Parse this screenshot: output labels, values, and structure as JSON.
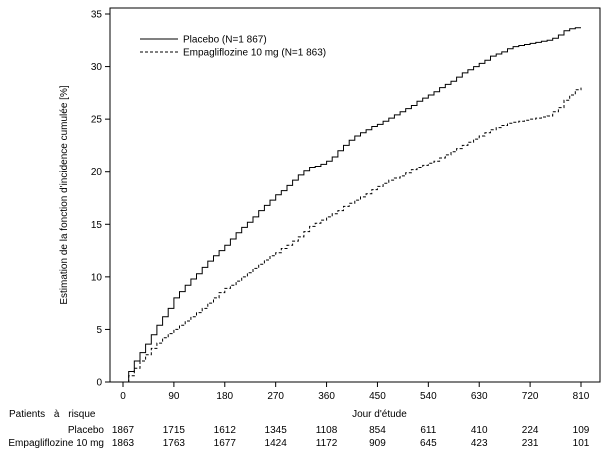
{
  "chart_data": {
    "type": "line",
    "title": "",
    "xlabel": "Jour d'étude",
    "ylabel": "Estimation de la fonction d'incidence cumulée [%]",
    "xlim": [
      0,
      810
    ],
    "ylim": [
      0,
      35
    ],
    "x_ticks": [
      0,
      90,
      180,
      270,
      360,
      450,
      540,
      630,
      720,
      810
    ],
    "y_ticks": [
      0,
      5,
      10,
      15,
      20,
      25,
      30,
      35
    ],
    "grid": false,
    "legend_position": "top-left",
    "series": [
      {
        "name": "Placebo (N=1 867)",
        "line_style": "solid",
        "color": "#000000",
        "x": [
          0,
          10,
          20,
          30,
          40,
          50,
          60,
          70,
          80,
          90,
          100,
          110,
          120,
          130,
          140,
          150,
          160,
          170,
          180,
          190,
          200,
          210,
          220,
          230,
          240,
          250,
          260,
          270,
          280,
          290,
          300,
          310,
          320,
          330,
          340,
          350,
          360,
          370,
          380,
          390,
          400,
          410,
          420,
          430,
          440,
          450,
          460,
          470,
          480,
          490,
          500,
          510,
          520,
          530,
          540,
          550,
          560,
          570,
          580,
          590,
          600,
          610,
          620,
          630,
          640,
          650,
          660,
          670,
          680,
          690,
          700,
          710,
          720,
          730,
          740,
          750,
          760,
          770,
          780,
          790,
          800,
          810
        ],
        "y": [
          0,
          1.0,
          2.0,
          2.8,
          3.6,
          4.5,
          5.4,
          6.2,
          7.0,
          8.0,
          8.6,
          9.2,
          9.8,
          10.3,
          10.9,
          11.5,
          12.0,
          12.5,
          13.0,
          13.6,
          14.2,
          14.7,
          15.2,
          15.7,
          16.3,
          16.8,
          17.3,
          17.8,
          18.2,
          18.7,
          19.2,
          19.7,
          20.1,
          20.4,
          20.5,
          20.7,
          21.0,
          21.4,
          22.0,
          22.5,
          23.0,
          23.4,
          23.7,
          24.0,
          24.3,
          24.5,
          24.8,
          25.1,
          25.4,
          25.7,
          26.0,
          26.3,
          26.7,
          27.0,
          27.3,
          27.6,
          28.0,
          28.3,
          28.6,
          29.0,
          29.4,
          29.7,
          30.0,
          30.3,
          30.6,
          31.0,
          31.2,
          31.4,
          31.7,
          31.9,
          32.0,
          32.1,
          32.2,
          32.3,
          32.4,
          32.5,
          32.7,
          33.0,
          33.4,
          33.6,
          33.7,
          33.7
        ]
      },
      {
        "name": "Empagliflozine 10 mg (N=1 863)",
        "line_style": "dashed",
        "color": "#000000",
        "x": [
          0,
          10,
          20,
          30,
          40,
          50,
          60,
          70,
          80,
          90,
          100,
          110,
          120,
          130,
          140,
          150,
          160,
          170,
          180,
          190,
          200,
          210,
          220,
          230,
          240,
          250,
          260,
          270,
          280,
          290,
          300,
          310,
          320,
          330,
          340,
          350,
          360,
          370,
          380,
          390,
          400,
          410,
          420,
          430,
          440,
          450,
          460,
          470,
          480,
          490,
          500,
          510,
          520,
          530,
          540,
          550,
          560,
          570,
          580,
          590,
          600,
          610,
          620,
          630,
          640,
          650,
          660,
          670,
          680,
          690,
          700,
          710,
          720,
          730,
          740,
          750,
          760,
          770,
          780,
          790,
          800,
          810
        ],
        "y": [
          0,
          0.6,
          1.3,
          2.0,
          2.6,
          3.2,
          3.7,
          4.2,
          4.6,
          5.0,
          5.4,
          5.8,
          6.2,
          6.6,
          7.0,
          7.5,
          8.0,
          8.5,
          8.9,
          9.2,
          9.6,
          10.0,
          10.4,
          10.8,
          11.2,
          11.6,
          12.0,
          12.3,
          12.7,
          13.0,
          13.4,
          13.8,
          14.3,
          14.8,
          15.1,
          15.4,
          15.7,
          16.0,
          16.3,
          16.7,
          17.0,
          17.3,
          17.6,
          17.9,
          18.3,
          18.6,
          18.9,
          19.2,
          19.4,
          19.6,
          19.9,
          20.2,
          20.4,
          20.6,
          20.8,
          21.0,
          21.3,
          21.6,
          21.9,
          22.2,
          22.5,
          22.8,
          23.1,
          23.4,
          23.7,
          24.0,
          24.2,
          24.4,
          24.6,
          24.7,
          24.8,
          24.9,
          25.0,
          25.1,
          25.2,
          25.3,
          25.7,
          26.1,
          26.8,
          27.3,
          27.8,
          28.0
        ]
      }
    ],
    "risk_table": {
      "header_left": "Patients à risque",
      "rows": [
        {
          "label": "Placebo",
          "values": [
            "1867",
            "1715",
            "1612",
            "1345",
            "1108",
            "854",
            "611",
            "410",
            "224",
            "109"
          ]
        },
        {
          "label": "Empagliflozine 10 mg",
          "values": [
            "1863",
            "1763",
            "1677",
            "1424",
            "1172",
            "909",
            "645",
            "423",
            "231",
            "101"
          ]
        }
      ]
    }
  }
}
